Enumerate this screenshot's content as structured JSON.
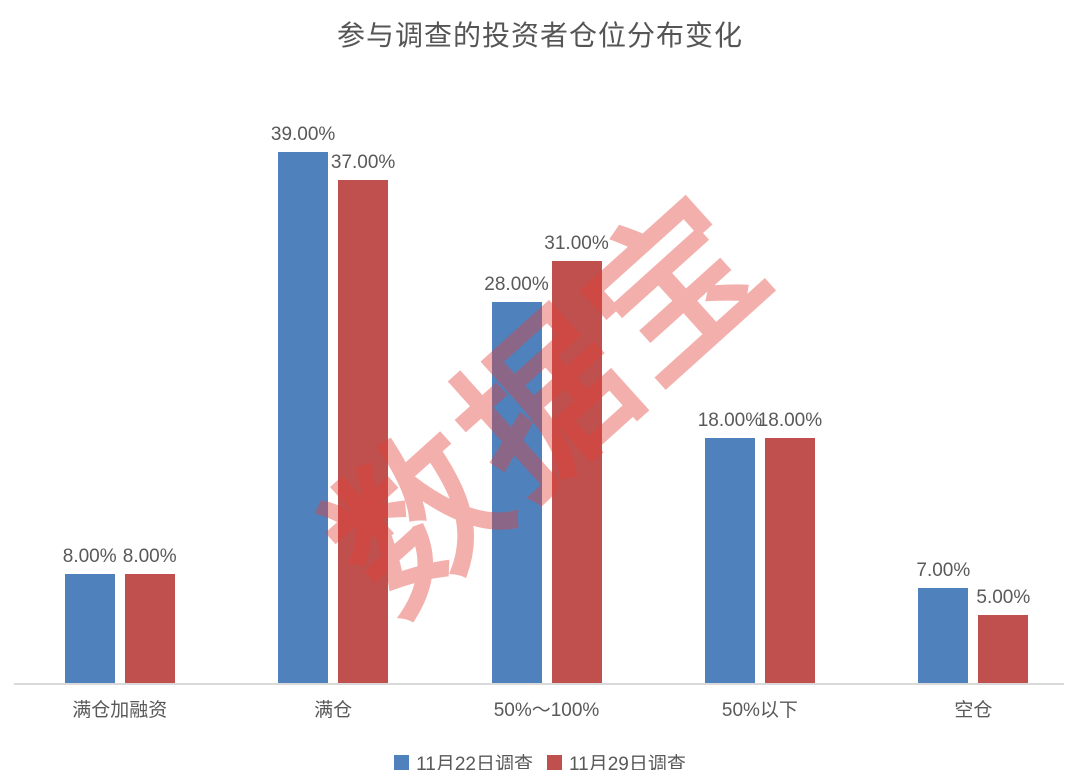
{
  "title": "参与调查的投资者仓位分布变化",
  "watermark": "数据宝",
  "colors": {
    "series1": "#4f81bd",
    "series2": "#c0504d",
    "text": "#595959",
    "axis_line": "#d9d9d9",
    "watermark": "rgba(227,64,58,0.42)"
  },
  "chart_data": {
    "type": "bar",
    "title": "参与调查的投资者仓位分布变化",
    "categories": [
      "满仓加融资",
      "满仓",
      "50%～100%",
      "50%以下",
      "空仓"
    ],
    "series": [
      {
        "name": "11月22日调查",
        "color": "#4f81bd",
        "values": [
          8,
          39,
          28,
          18,
          7
        ],
        "labels": [
          "8.00%",
          "39.00%",
          "28.00%",
          "18.00%",
          "7.00%"
        ]
      },
      {
        "name": "11月29日调查",
        "color": "#c0504d",
        "values": [
          8,
          37,
          31,
          18,
          5
        ],
        "labels": [
          "8.00%",
          "37.00%",
          "31.00%",
          "18.00%",
          "5.00%"
        ]
      }
    ],
    "xlabel": "",
    "ylabel": "",
    "ylim": [
      0,
      40.8
    ],
    "grid": false,
    "legend_position": "bottom",
    "data_labels": true
  }
}
